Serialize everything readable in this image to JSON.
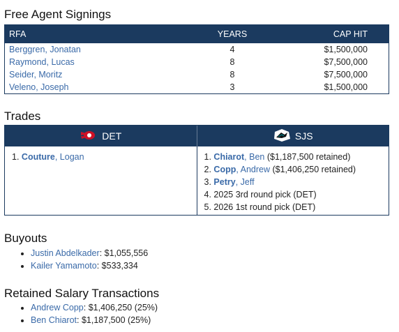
{
  "free_agents": {
    "title": "Free Agent Signings",
    "headers": {
      "name": "RFA",
      "years": "YEARS",
      "cap": "CAP HIT"
    },
    "rows": [
      {
        "name": "Berggren, Jonatan",
        "years": "4",
        "cap": "$1,500,000"
      },
      {
        "name": "Raymond, Lucas",
        "years": "8",
        "cap": "$7,500,000"
      },
      {
        "name": "Seider, Moritz",
        "years": "8",
        "cap": "$7,500,000"
      },
      {
        "name": "Veleno, Joseph",
        "years": "3",
        "cap": "$1,500,000"
      }
    ]
  },
  "trades": {
    "title": "Trades",
    "teams": [
      {
        "abbr": "DET",
        "logo_icon": "red-wings-logo-icon"
      },
      {
        "abbr": "SJS",
        "logo_icon": "sharks-logo-icon"
      }
    ],
    "det_side": [
      {
        "num": "1.",
        "last": "Couture",
        "first": ", Logan",
        "extra": ""
      }
    ],
    "sjs_side": [
      {
        "num": "1.",
        "last": "Chiarot",
        "first": ", Ben",
        "extra": " ($1,187,500 retained)"
      },
      {
        "num": "2.",
        "last": "Copp",
        "first": ", Andrew",
        "extra": " ($1,406,250 retained)"
      },
      {
        "num": "3.",
        "last": "Petry",
        "first": ", Jeff",
        "extra": ""
      },
      {
        "num": "4.",
        "text": "2025 3rd round pick (DET)"
      },
      {
        "num": "5.",
        "text": "2026 1st round pick (DET)"
      }
    ]
  },
  "buyouts": {
    "title": "Buyouts",
    "items": [
      {
        "name": "Justin Abdelkader",
        "amount": ": $1,055,556"
      },
      {
        "name": "Kailer Yamamoto",
        "amount": ": $533,334"
      }
    ]
  },
  "retained": {
    "title": "Retained Salary Transactions",
    "items": [
      {
        "name": "Andrew Copp",
        "amount": ": $1,406,250 (25%)"
      },
      {
        "name": "Ben Chiarot",
        "amount": ": $1,187,500 (25%)"
      }
    ]
  },
  "colors": {
    "header_bg": "#1b3a5f",
    "link": "#3a6aa8",
    "det_red": "#ce1126",
    "sjs_teal": "#006d75"
  }
}
